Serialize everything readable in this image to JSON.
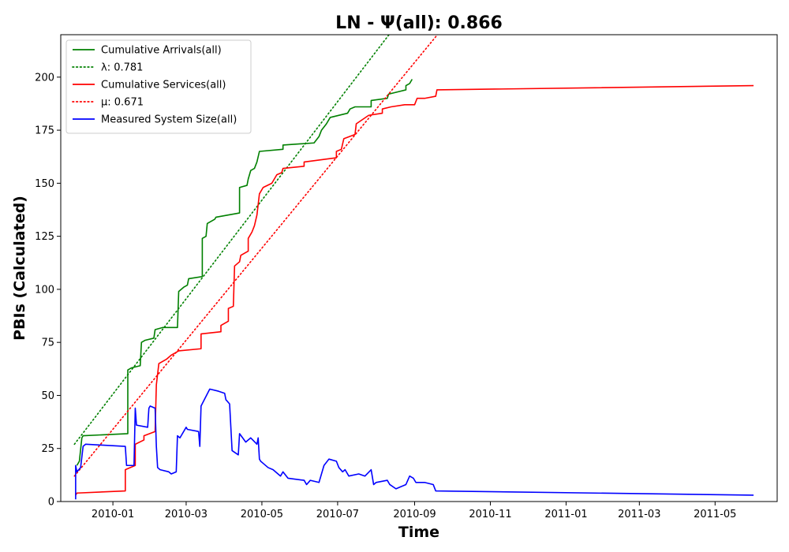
{
  "chart_data": {
    "type": "line",
    "title": "LN -  Ψ(all): 0.866",
    "xlabel": "Time",
    "ylabel": "PBIs (Calculated)",
    "xlim": [
      "2009-11-20",
      "2011-06-20"
    ],
    "ylim": [
      0,
      220
    ],
    "grid": false,
    "legend_position": "top-left",
    "x_ticks": [
      {
        "date": "2010-01-01",
        "label": "2010-01"
      },
      {
        "date": "2010-03-01",
        "label": "2010-03"
      },
      {
        "date": "2010-05-01",
        "label": "2010-05"
      },
      {
        "date": "2010-07-01",
        "label": "2010-07"
      },
      {
        "date": "2010-09-01",
        "label": "2010-09"
      },
      {
        "date": "2010-11-01",
        "label": "2010-11"
      },
      {
        "date": "2011-01-01",
        "label": "2011-01"
      },
      {
        "date": "2011-03-01",
        "label": "2011-03"
      },
      {
        "date": "2011-05-01",
        "label": "2011-05"
      }
    ],
    "y_ticks": [
      {
        "value": 0,
        "label": "0"
      },
      {
        "value": 25,
        "label": "25"
      },
      {
        "value": 50,
        "label": "50"
      },
      {
        "value": 75,
        "label": "75"
      },
      {
        "value": 100,
        "label": "100"
      },
      {
        "value": 125,
        "label": "125"
      },
      {
        "value": 150,
        "label": "150"
      },
      {
        "value": 175,
        "label": "175"
      },
      {
        "value": 200,
        "label": "200"
      }
    ],
    "series": [
      {
        "name": "Cumulative Arrivals(all)",
        "color": "#008000",
        "style": "solid",
        "points": [
          [
            "2009-12-03",
            17
          ],
          [
            "2009-12-05",
            19
          ],
          [
            "2009-12-07",
            30
          ],
          [
            "2009-12-08",
            31
          ],
          [
            "2010-01-13",
            32
          ],
          [
            "2010-01-13",
            62
          ],
          [
            "2010-01-16",
            63
          ],
          [
            "2010-01-23",
            64
          ],
          [
            "2010-01-24",
            75
          ],
          [
            "2010-01-27",
            76
          ],
          [
            "2010-02-03",
            77
          ],
          [
            "2010-02-04",
            81
          ],
          [
            "2010-02-10",
            82
          ],
          [
            "2010-02-22",
            82
          ],
          [
            "2010-02-23",
            99
          ],
          [
            "2010-02-27",
            101
          ],
          [
            "2010-03-02",
            102
          ],
          [
            "2010-03-03",
            105
          ],
          [
            "2010-03-14",
            106
          ],
          [
            "2010-03-14",
            124
          ],
          [
            "2010-03-17",
            125
          ],
          [
            "2010-03-18",
            131
          ],
          [
            "2010-03-24",
            133
          ],
          [
            "2010-03-25",
            134
          ],
          [
            "2010-04-13",
            136
          ],
          [
            "2010-04-13",
            148
          ],
          [
            "2010-04-19",
            149
          ],
          [
            "2010-04-20",
            152
          ],
          [
            "2010-04-22",
            156
          ],
          [
            "2010-04-25",
            157
          ],
          [
            "2010-04-27",
            160
          ],
          [
            "2010-04-29",
            165
          ],
          [
            "2010-05-18",
            166
          ],
          [
            "2010-05-18",
            168
          ],
          [
            "2010-06-12",
            169
          ],
          [
            "2010-06-16",
            172
          ],
          [
            "2010-06-18",
            175
          ],
          [
            "2010-06-22",
            178
          ],
          [
            "2010-06-25",
            181
          ],
          [
            "2010-07-09",
            183
          ],
          [
            "2010-07-11",
            185
          ],
          [
            "2010-07-15",
            186
          ],
          [
            "2010-07-28",
            186
          ],
          [
            "2010-07-28",
            189
          ],
          [
            "2010-08-10",
            190
          ],
          [
            "2010-08-11",
            192
          ],
          [
            "2010-08-25",
            194
          ],
          [
            "2010-08-25",
            196
          ],
          [
            "2010-08-28",
            197
          ],
          [
            "2010-08-30",
            199
          ]
        ]
      },
      {
        "name": "λ: 0.781",
        "color": "#008000",
        "style": "dotted",
        "points": [
          [
            "2009-12-01",
            27
          ],
          [
            "2010-08-14",
            222
          ]
        ]
      },
      {
        "name": "Cumulative Services(all)",
        "color": "#ff0000",
        "style": "solid",
        "points": [
          [
            "2009-12-02",
            3
          ],
          [
            "2009-12-03",
            4
          ],
          [
            "2010-01-11",
            5
          ],
          [
            "2010-01-11",
            15
          ],
          [
            "2010-01-19",
            17
          ],
          [
            "2010-01-19",
            27
          ],
          [
            "2010-01-26",
            29
          ],
          [
            "2010-01-26",
            31
          ],
          [
            "2010-02-04",
            33
          ],
          [
            "2010-02-05",
            55
          ],
          [
            "2010-02-07",
            65
          ],
          [
            "2010-02-13",
            67
          ],
          [
            "2010-02-17",
            69
          ],
          [
            "2010-02-20",
            70
          ],
          [
            "2010-02-23",
            71
          ],
          [
            "2010-03-13",
            72
          ],
          [
            "2010-03-13",
            79
          ],
          [
            "2010-03-29",
            80
          ],
          [
            "2010-03-29",
            83
          ],
          [
            "2010-04-04",
            85
          ],
          [
            "2010-04-04",
            91
          ],
          [
            "2010-04-08",
            92
          ],
          [
            "2010-04-09",
            111
          ],
          [
            "2010-04-13",
            113
          ],
          [
            "2010-04-14",
            116
          ],
          [
            "2010-04-20",
            118
          ],
          [
            "2010-04-20",
            124
          ],
          [
            "2010-04-23",
            127
          ],
          [
            "2010-04-25",
            130
          ],
          [
            "2010-04-27",
            135
          ],
          [
            "2010-04-29",
            145
          ],
          [
            "2010-05-02",
            148
          ],
          [
            "2010-05-09",
            150
          ],
          [
            "2010-05-13",
            154
          ],
          [
            "2010-05-17",
            155
          ],
          [
            "2010-05-18",
            157
          ],
          [
            "2010-06-04",
            158
          ],
          [
            "2010-06-04",
            160
          ],
          [
            "2010-06-30",
            162
          ],
          [
            "2010-06-30",
            165
          ],
          [
            "2010-07-04",
            166
          ],
          [
            "2010-07-06",
            171
          ],
          [
            "2010-07-15",
            173
          ],
          [
            "2010-07-16",
            178
          ],
          [
            "2010-07-26",
            182
          ],
          [
            "2010-08-06",
            183
          ],
          [
            "2010-08-06",
            185
          ],
          [
            "2010-08-13",
            186
          ],
          [
            "2010-08-24",
            187
          ],
          [
            "2010-09-01",
            187
          ],
          [
            "2010-09-03",
            190
          ],
          [
            "2010-09-09",
            190
          ],
          [
            "2010-09-18",
            191
          ],
          [
            "2010-09-19",
            194
          ],
          [
            "2011-06-01",
            196
          ]
        ]
      },
      {
        "name": "μ: 0.671",
        "color": "#ff0000",
        "style": "dotted",
        "points": [
          [
            "2009-12-01",
            12
          ],
          [
            "2010-09-25",
            224
          ]
        ]
      },
      {
        "name": "Measured System Size(all)",
        "color": "#0000ff",
        "style": "solid",
        "points": [
          [
            "2009-12-02",
            1
          ],
          [
            "2009-12-02",
            17
          ],
          [
            "2009-12-03",
            14
          ],
          [
            "2009-12-06",
            16
          ],
          [
            "2009-12-08",
            26
          ],
          [
            "2009-12-10",
            27
          ],
          [
            "2010-01-11",
            26
          ],
          [
            "2010-01-12",
            17
          ],
          [
            "2010-01-18",
            17
          ],
          [
            "2010-01-19",
            44
          ],
          [
            "2010-01-20",
            36
          ],
          [
            "2010-01-29",
            35
          ],
          [
            "2010-01-30",
            44
          ],
          [
            "2010-01-31",
            45
          ],
          [
            "2010-02-04",
            44
          ],
          [
            "2010-02-05",
            26
          ],
          [
            "2010-02-06",
            16
          ],
          [
            "2010-02-08",
            15
          ],
          [
            "2010-02-15",
            14
          ],
          [
            "2010-02-17",
            13
          ],
          [
            "2010-02-21",
            14
          ],
          [
            "2010-02-22",
            31
          ],
          [
            "2010-02-24",
            30
          ],
          [
            "2010-03-01",
            35
          ],
          [
            "2010-03-02",
            34
          ],
          [
            "2010-03-11",
            33
          ],
          [
            "2010-03-12",
            26
          ],
          [
            "2010-03-13",
            45
          ],
          [
            "2010-03-20",
            53
          ],
          [
            "2010-03-27",
            52
          ],
          [
            "2010-04-01",
            51
          ],
          [
            "2010-04-02",
            48
          ],
          [
            "2010-04-05",
            46
          ],
          [
            "2010-04-07",
            24
          ],
          [
            "2010-04-12",
            22
          ],
          [
            "2010-04-13",
            32
          ],
          [
            "2010-04-18",
            28
          ],
          [
            "2010-04-22",
            30
          ],
          [
            "2010-04-27",
            27
          ],
          [
            "2010-04-28",
            30
          ],
          [
            "2010-04-29",
            20
          ],
          [
            "2010-04-30",
            19
          ],
          [
            "2010-05-02",
            18
          ],
          [
            "2010-05-06",
            16
          ],
          [
            "2010-05-10",
            15
          ],
          [
            "2010-05-16",
            12
          ],
          [
            "2010-05-18",
            14
          ],
          [
            "2010-05-22",
            11
          ],
          [
            "2010-06-04",
            10
          ],
          [
            "2010-06-06",
            8
          ],
          [
            "2010-06-09",
            10
          ],
          [
            "2010-06-16",
            9
          ],
          [
            "2010-06-18",
            13
          ],
          [
            "2010-06-20",
            17
          ],
          [
            "2010-06-24",
            20
          ],
          [
            "2010-06-30",
            19
          ],
          [
            "2010-07-02",
            16
          ],
          [
            "2010-07-05",
            14
          ],
          [
            "2010-07-07",
            15
          ],
          [
            "2010-07-10",
            12
          ],
          [
            "2010-07-18",
            13
          ],
          [
            "2010-07-23",
            12
          ],
          [
            "2010-07-28",
            15
          ],
          [
            "2010-07-30",
            8
          ],
          [
            "2010-08-01",
            9
          ],
          [
            "2010-08-10",
            10
          ],
          [
            "2010-08-12",
            8
          ],
          [
            "2010-08-17",
            6
          ],
          [
            "2010-08-21",
            7
          ],
          [
            "2010-08-25",
            8
          ],
          [
            "2010-08-28",
            12
          ],
          [
            "2010-08-31",
            11
          ],
          [
            "2010-09-02",
            9
          ],
          [
            "2010-09-06",
            9
          ],
          [
            "2010-09-09",
            9
          ],
          [
            "2010-09-16",
            8
          ],
          [
            "2010-09-18",
            5
          ],
          [
            "2011-06-01",
            3
          ]
        ]
      }
    ]
  }
}
